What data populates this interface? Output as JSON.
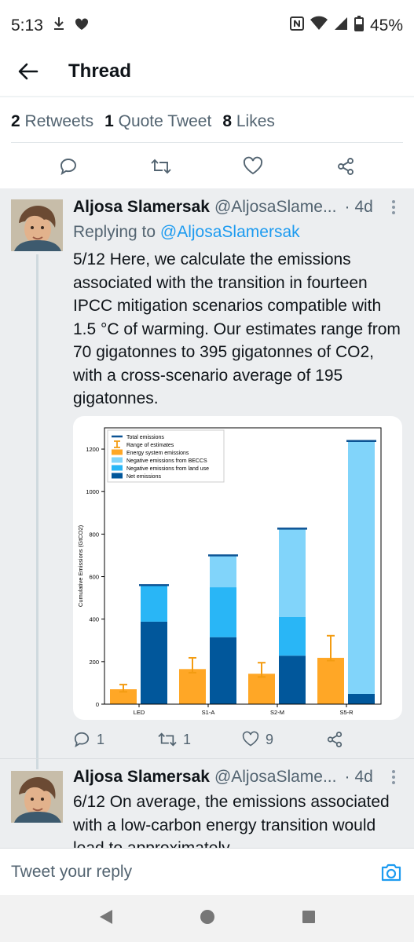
{
  "status_bar": {
    "time": "5:13",
    "battery": "45%",
    "icons": [
      "download-icon",
      "heart-icon",
      "nfc-icon",
      "wifi-icon",
      "signal-icon",
      "battery-icon"
    ]
  },
  "header": {
    "title": "Thread"
  },
  "stats": {
    "retweets_count": "2",
    "retweets_label": "Retweets",
    "quotes_count": "1",
    "quotes_label": "Quote Tweet",
    "likes_count": "8",
    "likes_label": "Likes"
  },
  "tweet1": {
    "name": "Aljosa Slamersak",
    "handle": "@AljosaSlame...",
    "dot": "·",
    "time": "4d",
    "replying_prefix": "Replying to",
    "replying_handle": "@AljosaSlamersak",
    "text": "5/12 Here, we calculate the emissions associated with the transition in fourteen IPCC mitigation scenarios compatible with 1.5 °C of warming. Our estimates range from 70 gigatonnes to 395 gigatonnes of CO2, with a cross-scenario average of 195 gigatonnes.",
    "reply_count": "1",
    "retweet_count": "1",
    "like_count": "9"
  },
  "tweet2": {
    "name": "Aljosa Slamersak",
    "handle": "@AljosaSlame...",
    "dot": "·",
    "time": "4d",
    "text": "6/12 On average, the emissions associated with a low-carbon energy transition would lead to approximately"
  },
  "reply_bar": {
    "placeholder": "Tweet your reply"
  },
  "colors": {
    "accent": "#1d9bf0",
    "total": "#0b5394",
    "range": "#f39c12",
    "energy": "#ffa726",
    "beccs": "#81d4fa",
    "land": "#29b6f6",
    "net": "#01579b"
  },
  "chart_data": {
    "type": "bar",
    "categories": [
      "LED",
      "S1-A",
      "S2-M",
      "S5-R"
    ],
    "ylabel": "Cumulative Emissions (GtCO2)",
    "ylim": [
      0,
      1300
    ],
    "yticks": [
      "0",
      "200",
      "400",
      "600",
      "800",
      "1000",
      "1200"
    ],
    "legend_position": "top-left",
    "legend": [
      "Total emissions",
      "Range of estimates",
      "Energy system emissions",
      "Negative emissions from BECCS",
      "Negative emissions from land use",
      "Net emissions"
    ],
    "energy": [
      70,
      165,
      143,
      218
    ],
    "energy_range": [
      [
        58,
        92
      ],
      [
        148,
        218
      ],
      [
        128,
        195
      ],
      [
        205,
        322
      ]
    ],
    "net": [
      388,
      315,
      228,
      48
    ],
    "land_use": [
      172,
      235,
      183,
      0
    ],
    "beccs": [
      0,
      150,
      415,
      1190
    ],
    "total": [
      560,
      700,
      826,
      1238
    ]
  }
}
